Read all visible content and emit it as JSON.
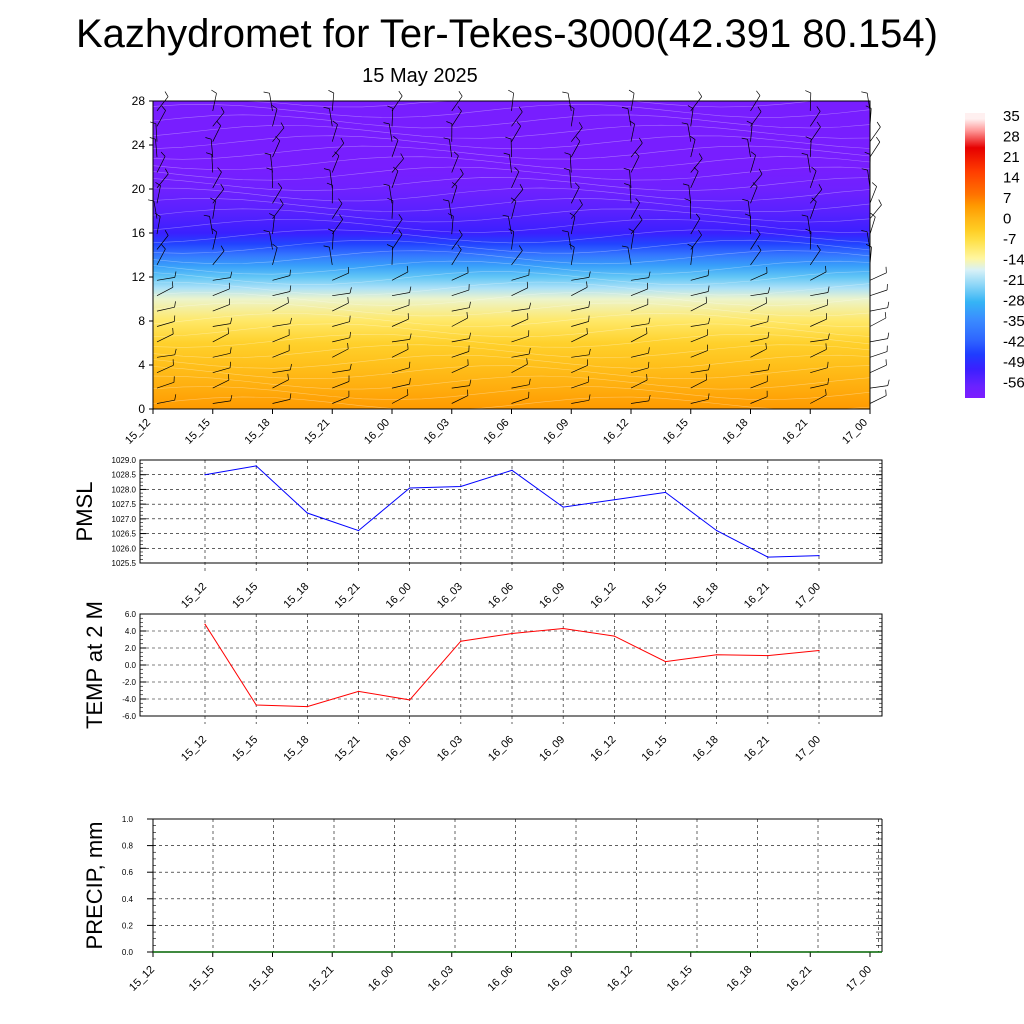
{
  "page": {
    "title": "Kazhydromet for Ter-Tekes-3000(42.391 80.154)",
    "date": "15 May 2025"
  },
  "colors": {
    "pmsl_line": "#0000ff",
    "temp_line": "#ff0000",
    "precip_line": "#006400",
    "colorbar": [
      "#8a2be2",
      "#7b2cff",
      "#4b3cff",
      "#1f4dff",
      "#3a6dff",
      "#4a8eff",
      "#3ab0ff",
      "#6ad0ff",
      "#b8e6ff",
      "#fff29a",
      "#ffe14a",
      "#ffc21a",
      "#ffa500",
      "#ff7a00",
      "#ff4d00",
      "#ff1a00",
      "#e60000",
      "#ffb0b0",
      "#fff0f0"
    ]
  },
  "chart_data": [
    {
      "type": "heatmap",
      "title": "",
      "xlabel": "",
      "ylabel": "",
      "x": [
        "15_12",
        "15_15",
        "15_18",
        "15_21",
        "16_00",
        "16_03",
        "16_06",
        "16_09",
        "16_12",
        "16_15",
        "16_18",
        "16_21",
        "17_00"
      ],
      "yticks": [
        0,
        4,
        8,
        12,
        16,
        20,
        24,
        28
      ],
      "ylim": [
        0,
        28
      ],
      "temperature_profile": [
        {
          "y": 0,
          "value": 6
        },
        {
          "y": 2,
          "value": 3
        },
        {
          "y": 4,
          "value": 0
        },
        {
          "y": 6,
          "value": -3
        },
        {
          "y": 8,
          "value": -8
        },
        {
          "y": 10,
          "value": -14
        },
        {
          "y": 11,
          "value": -19
        },
        {
          "y": 12,
          "value": -24
        },
        {
          "y": 13,
          "value": -30
        },
        {
          "y": 14,
          "value": -37
        },
        {
          "y": 15,
          "value": -44
        },
        {
          "y": 16,
          "value": -50
        },
        {
          "y": 18,
          "value": -54
        },
        {
          "y": 20,
          "value": -57
        },
        {
          "y": 22,
          "value": -59
        },
        {
          "y": 28,
          "value": -59
        }
      ],
      "colorbar_labels": [
        "35",
        "28",
        "21",
        "14",
        "7",
        "0",
        "-7",
        "-14",
        "-21",
        "-28",
        "-35",
        "-42",
        "-49",
        "-56"
      ],
      "grid": false
    },
    {
      "type": "line",
      "ylabel": "PMSL",
      "x": [
        "15_12",
        "15_15",
        "15_18",
        "15_21",
        "16_00",
        "16_03",
        "16_06",
        "16_09",
        "16_12",
        "16_15",
        "16_18",
        "16_21",
        "17_00"
      ],
      "series": [
        {
          "values": [
            1028.5,
            1028.8,
            1027.2,
            1026.6,
            1028.05,
            1028.1,
            1028.65,
            1027.4,
            1027.65,
            1027.9,
            1026.6,
            1025.7,
            1025.75
          ]
        }
      ],
      "ylim": [
        1025.5,
        1029.0
      ],
      "yticks": [
        "1025.5",
        "1026.0",
        "1026.5",
        "1027.0",
        "1027.5",
        "1028.0",
        "1028.5",
        "1029.0"
      ],
      "grid": true
    },
    {
      "type": "line",
      "ylabel": "TEMP at 2 M",
      "x": [
        "15_12",
        "15_15",
        "15_18",
        "15_21",
        "16_00",
        "16_03",
        "16_06",
        "16_09",
        "16_12",
        "16_15",
        "16_18",
        "16_21",
        "17_00"
      ],
      "series": [
        {
          "values": [
            4.8,
            -4.7,
            -4.9,
            -3.1,
            -4.1,
            2.8,
            3.7,
            4.3,
            3.4,
            0.4,
            1.2,
            1.1,
            1.7
          ]
        }
      ],
      "ylim": [
        -6.0,
        6.0
      ],
      "yticks": [
        "-6.0",
        "-4.0",
        "-2.0",
        "0.0",
        "2.0",
        "4.0",
        "6.0"
      ],
      "grid": true
    },
    {
      "type": "line",
      "ylabel": "PRECIP, mm",
      "x": [
        "15_12",
        "15_15",
        "15_18",
        "15_21",
        "16_00",
        "16_03",
        "16_06",
        "16_09",
        "16_12",
        "16_15",
        "16_18",
        "16_21",
        "17_00"
      ],
      "series": [
        {
          "values": [
            0,
            0,
            0,
            0,
            0,
            0,
            0,
            0,
            0,
            0,
            0,
            0,
            0
          ]
        }
      ],
      "ylim": [
        0.0,
        1.0
      ],
      "yticks": [
        "0.0",
        "0.2",
        "0.4",
        "0.6",
        "0.8",
        "1.0"
      ],
      "grid": true
    }
  ]
}
